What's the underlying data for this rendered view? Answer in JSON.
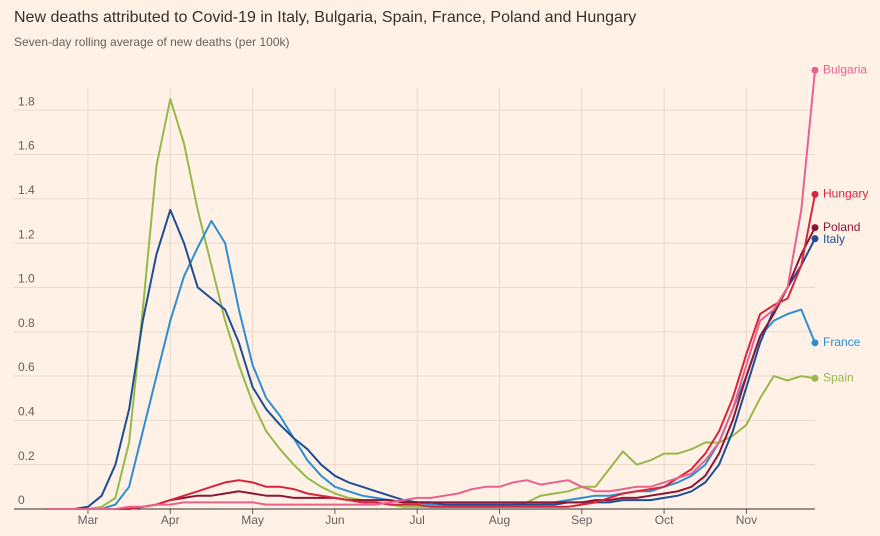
{
  "chart_data": {
    "type": "line",
    "title": "New deaths attributed to Covid-19 in Italy, Bulgaria, Spain, France, Poland and Hungary",
    "subtitle": "Seven-day rolling average of new deaths (per 100k)",
    "categories": [
      null,
      null,
      null,
      "Mar",
      null,
      null,
      null,
      null,
      null,
      "Apr",
      null,
      null,
      null,
      null,
      null,
      "May",
      null,
      null,
      null,
      null,
      null,
      "Jun",
      null,
      null,
      null,
      null,
      null,
      "Jul",
      null,
      null,
      null,
      null,
      null,
      "Aug",
      null,
      null,
      null,
      null,
      null,
      "Sep",
      null,
      null,
      null,
      null,
      null,
      "Oct",
      null,
      null,
      null,
      null,
      null,
      "Nov",
      null,
      null,
      null,
      null,
      null
    ],
    "ylim": [
      0,
      1.9
    ],
    "yticks": [
      0,
      0.2,
      0.4,
      0.6,
      0.8,
      {
        "value": 1,
        "label": "1.0"
      },
      1.2,
      1.4,
      1.6,
      1.8
    ],
    "grid": true,
    "series": [
      {
        "name": "Spain",
        "color": "#96b94a",
        "values": [
          0,
          0,
          0,
          0,
          0.01,
          0.05,
          0.3,
          0.9,
          1.55,
          1.85,
          1.65,
          1.35,
          1.1,
          0.85,
          0.65,
          0.48,
          0.35,
          0.27,
          0.2,
          0.14,
          0.1,
          0.07,
          0.05,
          0.04,
          0.03,
          0.02,
          0.01,
          0.01,
          0.01,
          0.01,
          0.01,
          0.01,
          0.01,
          0.01,
          0.02,
          0.03,
          0.06,
          0.07,
          0.08,
          0.1,
          0.1,
          0.18,
          0.26,
          0.2,
          0.22,
          0.25,
          0.25,
          0.27,
          0.3,
          0.3,
          0.33,
          0.38,
          0.5,
          0.6,
          0.58,
          0.6,
          0.59
        ]
      },
      {
        "name": "France",
        "color": "#2e8fd0",
        "values": [
          0,
          0,
          0,
          0,
          0,
          0.02,
          0.1,
          0.35,
          0.6,
          0.85,
          1.05,
          1.18,
          1.3,
          1.2,
          0.9,
          0.65,
          0.5,
          0.42,
          0.32,
          0.22,
          0.15,
          0.1,
          0.08,
          0.06,
          0.05,
          0.04,
          0.03,
          0.03,
          0.02,
          0.02,
          0.02,
          0.02,
          0.02,
          0.02,
          0.02,
          0.02,
          0.02,
          0.03,
          0.04,
          0.05,
          0.06,
          0.06,
          0.07,
          0.08,
          0.08,
          0.1,
          0.12,
          0.15,
          0.2,
          0.3,
          0.45,
          0.6,
          0.78,
          0.85,
          0.88,
          0.9,
          0.75
        ]
      },
      {
        "name": "Italy",
        "color": "#1d4e94",
        "values": [
          0,
          0,
          0,
          0.01,
          0.06,
          0.2,
          0.45,
          0.85,
          1.15,
          1.35,
          1.2,
          1.0,
          0.95,
          0.9,
          0.75,
          0.55,
          0.45,
          0.38,
          0.32,
          0.27,
          0.2,
          0.15,
          0.12,
          0.1,
          0.08,
          0.06,
          0.04,
          0.03,
          0.03,
          0.02,
          0.02,
          0.02,
          0.02,
          0.02,
          0.02,
          0.02,
          0.02,
          0.02,
          0.03,
          0.03,
          0.03,
          0.03,
          0.04,
          0.04,
          0.04,
          0.05,
          0.06,
          0.08,
          0.12,
          0.2,
          0.35,
          0.55,
          0.75,
          0.9,
          1.0,
          1.1,
          1.22
        ]
      },
      {
        "name": "Poland",
        "color": "#8c1538",
        "values": [
          0,
          0,
          0,
          0,
          0,
          0,
          0,
          0.01,
          0.02,
          0.04,
          0.05,
          0.06,
          0.06,
          0.07,
          0.08,
          0.07,
          0.06,
          0.06,
          0.05,
          0.05,
          0.05,
          0.05,
          0.04,
          0.04,
          0.04,
          0.04,
          0.03,
          0.03,
          0.03,
          0.03,
          0.03,
          0.03,
          0.03,
          0.03,
          0.03,
          0.03,
          0.03,
          0.03,
          0.03,
          0.03,
          0.04,
          0.04,
          0.05,
          0.05,
          0.06,
          0.07,
          0.08,
          0.1,
          0.15,
          0.25,
          0.4,
          0.6,
          0.78,
          0.88,
          1.0,
          1.15,
          1.27
        ]
      },
      {
        "name": "Hungary",
        "color": "#d7263d",
        "values": [
          0,
          0,
          0,
          0,
          0,
          0,
          0,
          0.01,
          0.02,
          0.04,
          0.06,
          0.08,
          0.1,
          0.12,
          0.13,
          0.12,
          0.1,
          0.1,
          0.09,
          0.07,
          0.06,
          0.05,
          0.04,
          0.03,
          0.03,
          0.02,
          0.02,
          0.02,
          0.01,
          0.01,
          0.01,
          0.01,
          0.01,
          0.01,
          0.01,
          0.01,
          0.01,
          0.01,
          0.01,
          0.02,
          0.03,
          0.05,
          0.07,
          0.08,
          0.09,
          0.1,
          0.14,
          0.18,
          0.25,
          0.35,
          0.5,
          0.7,
          0.88,
          0.92,
          0.95,
          1.1,
          1.42
        ]
      },
      {
        "name": "Bulgaria",
        "color": "#e8628e",
        "values": [
          0,
          0,
          0,
          0,
          0,
          0,
          0.01,
          0.01,
          0.02,
          0.02,
          0.03,
          0.03,
          0.03,
          0.03,
          0.03,
          0.03,
          0.02,
          0.02,
          0.02,
          0.02,
          0.02,
          0.02,
          0.02,
          0.02,
          0.02,
          0.03,
          0.04,
          0.05,
          0.05,
          0.06,
          0.07,
          0.09,
          0.1,
          0.1,
          0.12,
          0.13,
          0.11,
          0.12,
          0.13,
          0.1,
          0.08,
          0.08,
          0.09,
          0.1,
          0.1,
          0.12,
          0.14,
          0.16,
          0.22,
          0.3,
          0.45,
          0.65,
          0.85,
          0.9,
          1.0,
          1.35,
          1.98
        ]
      }
    ]
  }
}
